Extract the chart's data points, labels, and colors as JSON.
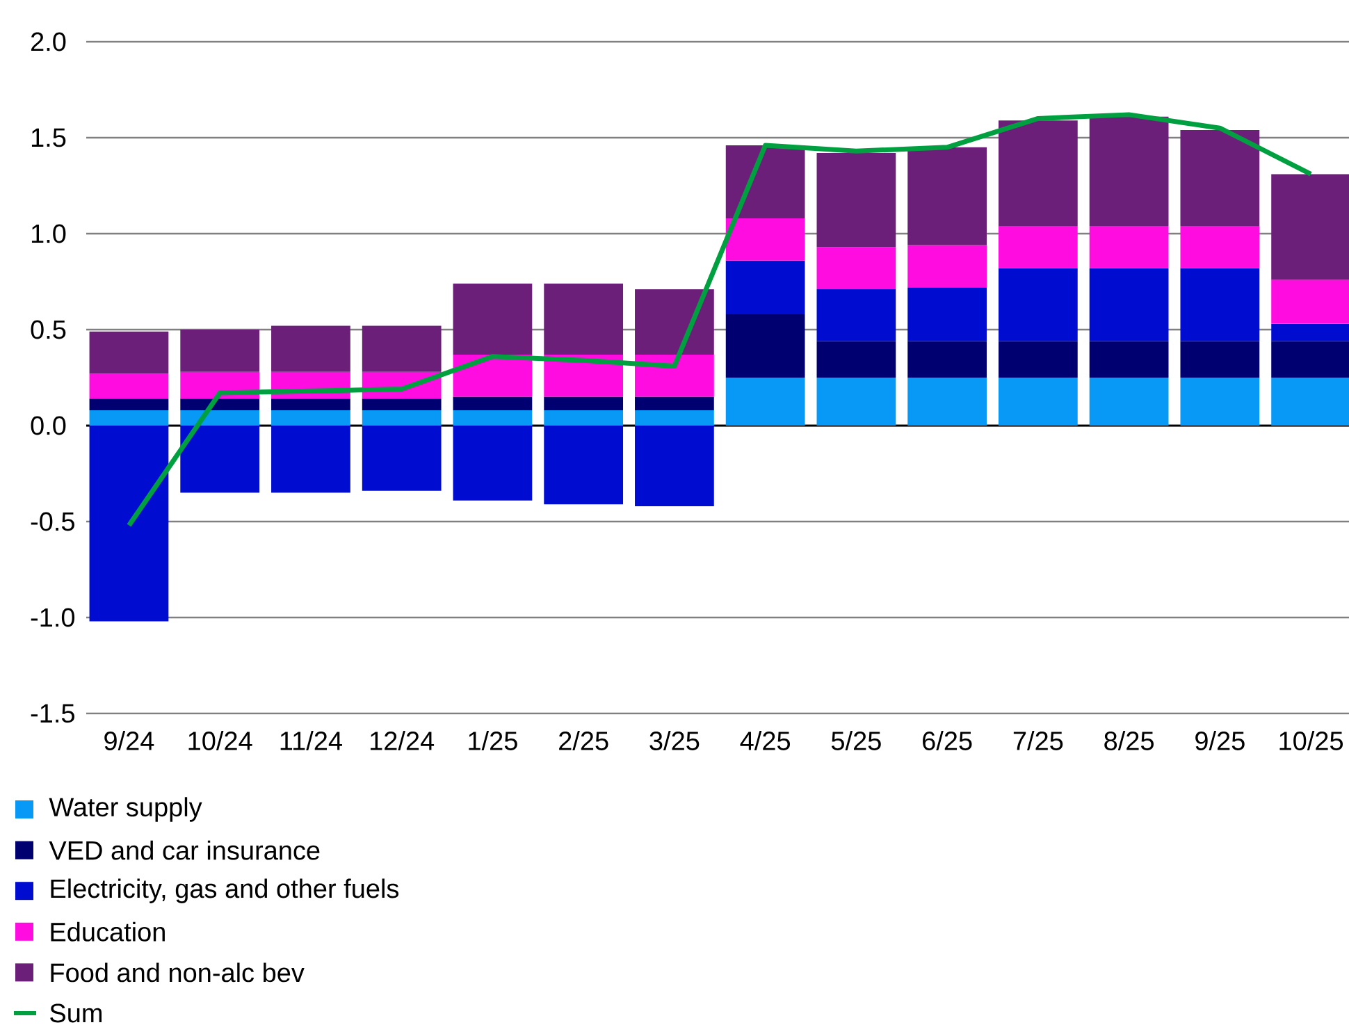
{
  "chart_data": {
    "type": "bar",
    "stacked": true,
    "categories": [
      "9/24",
      "10/24",
      "11/24",
      "12/24",
      "1/25",
      "2/25",
      "3/25",
      "4/25",
      "5/25",
      "6/25",
      "7/25",
      "8/25",
      "9/25",
      "10/25"
    ],
    "series": [
      {
        "name": "Water supply",
        "color": "#0799f5",
        "values": [
          0.08,
          0.08,
          0.08,
          0.08,
          0.08,
          0.08,
          0.08,
          0.25,
          0.25,
          0.25,
          0.25,
          0.25,
          0.25,
          0.25
        ]
      },
      {
        "name": "VED and car insurance",
        "color": "#000070",
        "values": [
          0.06,
          0.06,
          0.06,
          0.06,
          0.07,
          0.07,
          0.07,
          0.33,
          0.19,
          0.19,
          0.19,
          0.19,
          0.19,
          0.19
        ]
      },
      {
        "name": "Electricity, gas and other fuels",
        "color": "#000ccf",
        "values": [
          -1.02,
          -0.35,
          -0.35,
          -0.34,
          -0.39,
          -0.41,
          -0.42,
          0.28,
          0.27,
          0.28,
          0.38,
          0.38,
          0.38,
          0.09
        ]
      },
      {
        "name": "Education",
        "color": "#ff0ce0",
        "values": [
          0.13,
          0.14,
          0.14,
          0.14,
          0.22,
          0.22,
          0.22,
          0.22,
          0.22,
          0.22,
          0.22,
          0.22,
          0.22,
          0.23
        ]
      },
      {
        "name": "Food and non-alc bev",
        "color": "#6b1f78",
        "values": [
          0.22,
          0.22,
          0.24,
          0.24,
          0.37,
          0.37,
          0.34,
          0.38,
          0.49,
          0.51,
          0.55,
          0.57,
          0.5,
          0.55
        ]
      },
      {
        "name": "Sum",
        "type": "line",
        "color": "#00a040",
        "values": [
          -0.52,
          0.17,
          0.18,
          0.19,
          0.36,
          0.34,
          0.31,
          1.46,
          1.43,
          1.45,
          1.6,
          1.62,
          1.55,
          1.31
        ]
      }
    ],
    "ylim": [
      -1.5,
      2.0
    ],
    "yticks": [
      {
        "value": -1.5,
        "label": "-1.5"
      },
      {
        "value": -1.0,
        "label": "-1.0"
      },
      {
        "value": -0.5,
        "label": "-0.5"
      },
      {
        "value": 0,
        "label": "0.0"
      },
      {
        "value": 0.5,
        "label": "0.5"
      },
      {
        "value": 1.0,
        "label": "1.0"
      },
      {
        "value": 1.5,
        "label": "1.5"
      },
      {
        "value": 2.0,
        "label": "2.0"
      }
    ],
    "grid": "y",
    "legend": "bottom"
  }
}
